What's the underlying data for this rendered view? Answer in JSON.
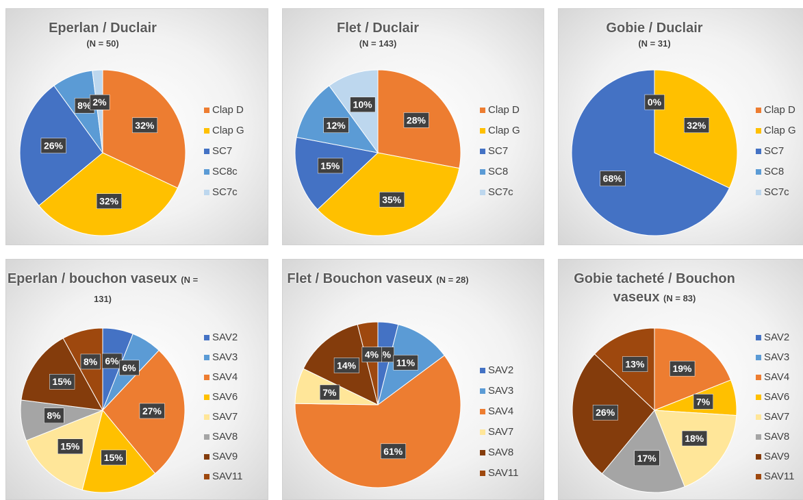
{
  "chart_data": [
    {
      "type": "pie",
      "title": "Eperlan / Duclair",
      "subtitle": "(N = 50)",
      "categories": [
        "Clap D",
        "Clap G",
        "SC7",
        "SC8c",
        "SC7c"
      ],
      "values": [
        32,
        32,
        26,
        8,
        2
      ],
      "value_labels": [
        "32%",
        "32%",
        "26%",
        "8%",
        "2%"
      ],
      "colors": [
        "#ED7D31",
        "#FFC000",
        "#4472C4",
        "#5B9BD5",
        "#BDD7EE"
      ],
      "legend": "right"
    },
    {
      "type": "pie",
      "title": "Flet / Duclair",
      "subtitle": "(N = 143)",
      "categories": [
        "Clap D",
        "Clap G",
        "SC7",
        "SC8",
        "SC7c"
      ],
      "values": [
        28,
        35,
        15,
        12,
        10
      ],
      "value_labels": [
        "28%",
        "35%",
        "15%",
        "12%",
        "10%"
      ],
      "colors": [
        "#ED7D31",
        "#FFC000",
        "#4472C4",
        "#5B9BD5",
        "#BDD7EE"
      ],
      "legend": "right"
    },
    {
      "type": "pie",
      "title": "Gobie / Duclair",
      "subtitle": "(N = 31)",
      "categories": [
        "Clap D",
        "Clap G",
        "SC7",
        "SC8",
        "SC7c"
      ],
      "values": [
        0,
        32,
        68,
        null,
        null
      ],
      "value_labels": [
        "0%",
        "32%",
        "68%",
        null,
        null
      ],
      "colors": [
        "#ED7D31",
        "#FFC000",
        "#4472C4",
        "#5B9BD5",
        "#BDD7EE"
      ],
      "legend": "right"
    },
    {
      "type": "pie",
      "title": "Eperlan / bouchon vaseux",
      "subtitle": "(N = 131)",
      "categories": [
        "SAV2",
        "SAV3",
        "SAV4",
        "SAV6",
        "SAV7",
        "SAV8",
        "SAV9",
        "SAV11"
      ],
      "values": [
        6,
        6,
        27,
        15,
        15,
        8,
        15,
        8
      ],
      "value_labels": [
        "6%",
        "6%",
        "27%",
        "15%",
        "15%",
        "8%",
        "15%",
        "8%"
      ],
      "colors": [
        "#4472C4",
        "#5B9BD5",
        "#ED7D31",
        "#FFC000",
        "#FFE699",
        "#A5A5A5",
        "#843C0C",
        "#9E480E"
      ],
      "legend": "right"
    },
    {
      "type": "pie",
      "title": "Flet / Bouchon vaseux",
      "subtitle": "(N = 28)",
      "categories": [
        "SAV2",
        "SAV3",
        "SAV4",
        "SAV7",
        "SAV8",
        "SAV11"
      ],
      "values": [
        4,
        11,
        61,
        7,
        14,
        4
      ],
      "value_labels": [
        "4%",
        "11%",
        "61%",
        "7%",
        "14%",
        "4%"
      ],
      "colors": [
        "#4472C4",
        "#5B9BD5",
        "#ED7D31",
        "#FFE699",
        "#843C0C",
        "#9E480E"
      ],
      "legend": "right"
    },
    {
      "type": "pie",
      "title": "Gobie tacheté / Bouchon vaseux",
      "subtitle": "(N = 83)",
      "categories": [
        "SAV2",
        "SAV3",
        "SAV4",
        "SAV6",
        "SAV7",
        "SAV8",
        "SAV9",
        "SAV11"
      ],
      "values": [
        null,
        null,
        19,
        7,
        18,
        17,
        26,
        13
      ],
      "value_labels": [
        null,
        null,
        "19%",
        "7%",
        "18%",
        "17%",
        "26%",
        "13%"
      ],
      "colors": [
        "#4472C4",
        "#5B9BD5",
        "#ED7D31",
        "#FFC000",
        "#FFE699",
        "#A5A5A5",
        "#843C0C",
        "#9E480E"
      ],
      "legend": "right"
    }
  ]
}
